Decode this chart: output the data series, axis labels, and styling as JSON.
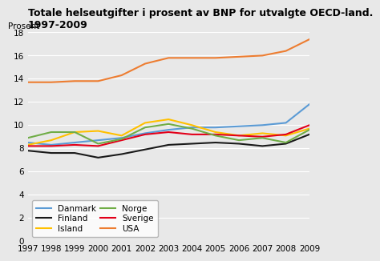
{
  "title": "Totale helseutgifter i prosent av BNP for utvalgte OECD-land.\n1997-2009",
  "ylabel": "Prosent",
  "years": [
    1997,
    1998,
    1999,
    2000,
    2001,
    2002,
    2003,
    2004,
    2005,
    2006,
    2007,
    2008,
    2009
  ],
  "series": {
    "Danmark": [
      8.5,
      8.3,
      8.5,
      8.7,
      8.9,
      9.3,
      9.6,
      9.8,
      9.8,
      9.9,
      10.0,
      10.2,
      11.8
    ],
    "Island": [
      8.3,
      8.7,
      9.4,
      9.5,
      9.1,
      10.2,
      10.5,
      10.0,
      9.4,
      9.1,
      9.3,
      9.1,
      9.7
    ],
    "Sverige": [
      8.2,
      8.2,
      8.3,
      8.2,
      8.7,
      9.2,
      9.4,
      9.2,
      9.2,
      9.1,
      9.0,
      9.2,
      10.0
    ],
    "Finland": [
      7.8,
      7.6,
      7.6,
      7.2,
      7.5,
      7.9,
      8.3,
      8.4,
      8.5,
      8.4,
      8.2,
      8.4,
      9.2
    ],
    "Norge": [
      8.9,
      9.4,
      9.4,
      8.4,
      8.8,
      9.8,
      10.1,
      9.7,
      9.1,
      8.7,
      8.9,
      8.5,
      9.6
    ],
    "USA": [
      13.7,
      13.7,
      13.8,
      13.8,
      14.3,
      15.3,
      15.8,
      15.8,
      15.8,
      15.9,
      16.0,
      16.4,
      17.4
    ]
  },
  "colors": {
    "Danmark": "#5b9bd5",
    "Island": "#ffc000",
    "Sverige": "#e2001a",
    "Finland": "#1a1a1a",
    "Norge": "#70ad47",
    "USA": "#ed7d31"
  },
  "legend_order": [
    "Danmark",
    "Finland",
    "Island",
    "Norge",
    "Sverige",
    "USA"
  ],
  "ylim": [
    0,
    18
  ],
  "yticks": [
    0,
    2,
    4,
    6,
    8,
    10,
    12,
    14,
    16,
    18
  ],
  "bg_color": "#e8e8e8",
  "grid_color": "#ffffff",
  "title_fontsize": 9.0,
  "tick_fontsize": 7.5,
  "legend_fontsize": 7.5
}
